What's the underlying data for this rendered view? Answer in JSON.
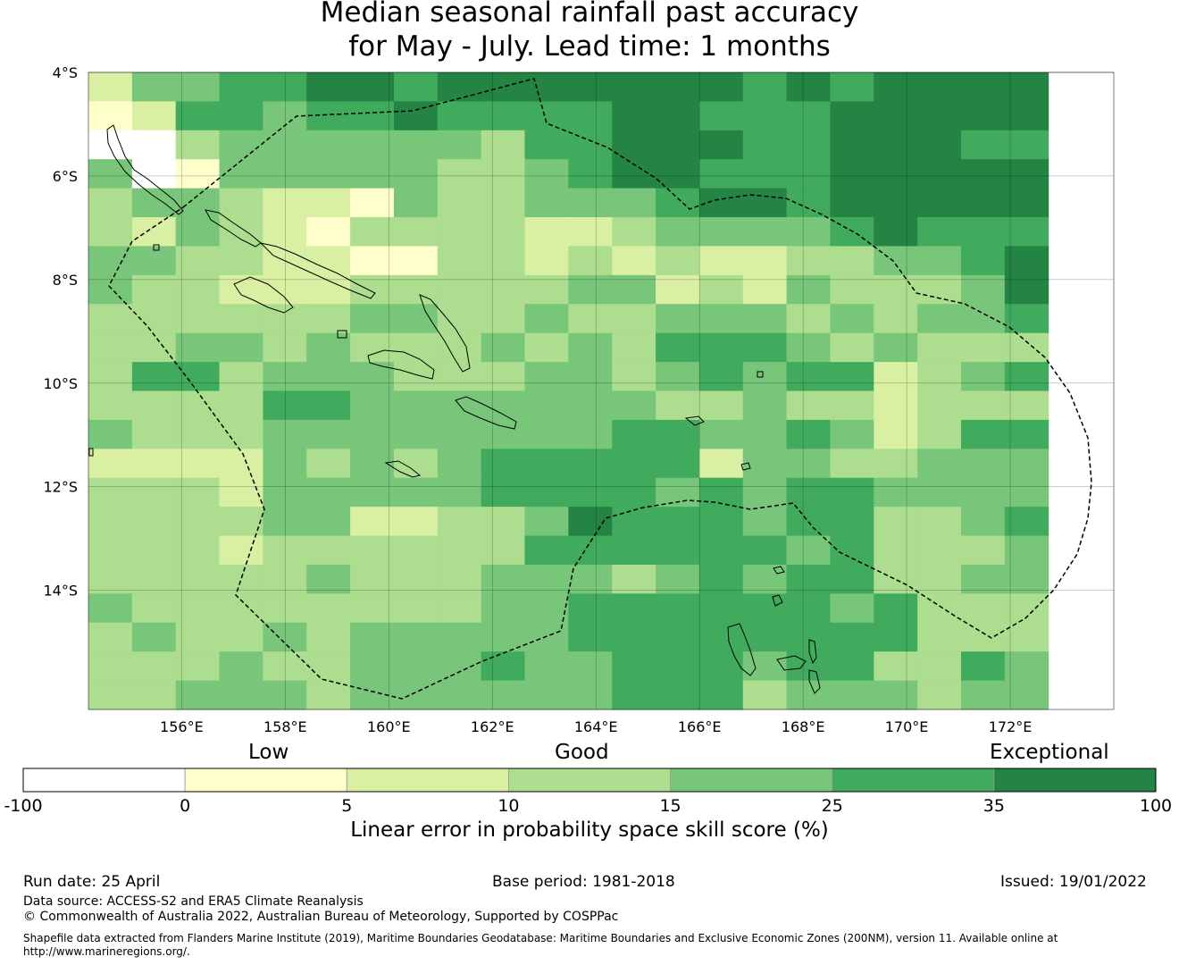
{
  "title": {
    "line1": "Median seasonal rainfall past accuracy",
    "line2": "for May - July. Lead time: 1 months"
  },
  "map": {
    "lat_labels": [
      "4°S",
      "6°S",
      "8°S",
      "10°S",
      "12°S",
      "14°S"
    ],
    "lon_labels": [
      "156°E",
      "158°E",
      "160°E",
      "162°E",
      "164°E",
      "166°E",
      "168°E",
      "170°E",
      "172°E"
    ],
    "lat_range": [
      -4.0,
      -16.3
    ],
    "lon_range": [
      154.2,
      174.0
    ],
    "grid": true,
    "cell_color_scale": [
      "#ffffff",
      "#ffffcc",
      "#d9f0a3",
      "#addd8e",
      "#78c679",
      "#41ab5d",
      "#238443"
    ],
    "cells": [
      "2445566566666665656666",
      "1255455655556655566666",
      "0034444443556665566655",
      "4014444433456655566666",
      "3443221433444566566666",
      "3243213333223444456555",
      "4433221133232322334456",
      "4332223333344232433346",
      "3333334433433444343445",
      "3344343334343555434333",
      "3553444333443454552345",
      "3333554444444334332333",
      "4333444444445544542355",
      "2222434345555524433444",
      "3332444445555454554444",
      "3333442233465554553345",
      "3332333333555555453334",
      "3333343334443454553344",
      "4333333334455555545333",
      "3433434444455555555333",
      "3334334445445554553354",
      "3344434444445553444344"
    ]
  },
  "legend": {
    "categories": [
      "Low",
      "Good",
      "Exceptional"
    ],
    "ticks": [
      "-100",
      "0",
      "5",
      "10",
      "15",
      "25",
      "35",
      "100"
    ],
    "colors": [
      "#ffffff",
      "#ffffcc",
      "#d9f0a3",
      "#addd8e",
      "#78c679",
      "#41ab5d",
      "#238443"
    ],
    "caption": "Linear error in probability space skill score (%)"
  },
  "footer": {
    "run_date": "Run date: 25 April",
    "base_period": "Base period: 1981-2018",
    "issued": "Issued: 19/01/2022",
    "data_source": "Data source: ACCESS-S2 and ERA5 Climate Reanalysis",
    "copyright": "© Commonwealth of Australia 2022, Australian Bureau of Meteorology, Supported by COSPPac",
    "shapefile": "Shapefile data extracted from Flanders Marine Institute (2019), Maritime Boundaries Geodatabase: Maritime Boundaries and Exclusive Economic Zones (200NM), version 11. Available online at http://www.marineregions.org/."
  }
}
